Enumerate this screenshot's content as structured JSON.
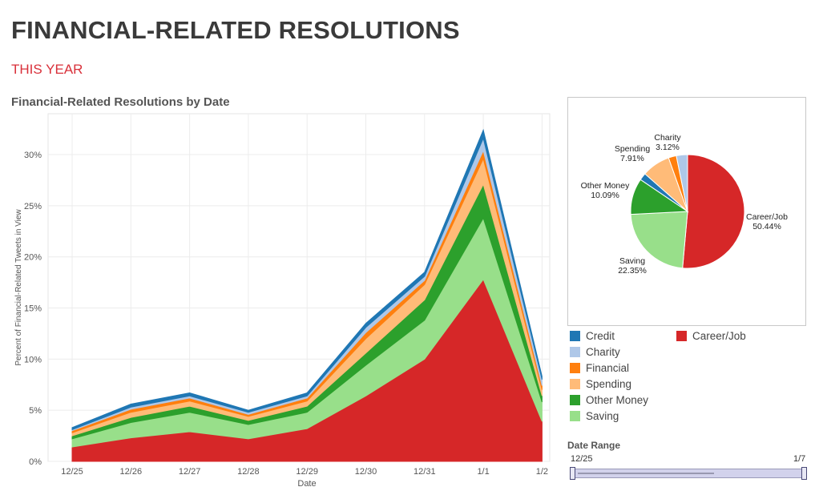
{
  "page": {
    "title": "FINANCIAL-RELATED RESOLUTIONS",
    "subtitle": "THIS YEAR",
    "chart_title": "Financial-Related Resolutions by Date"
  },
  "chart_data": [
    {
      "type": "area",
      "stacked": true,
      "title": "Financial-Related Resolutions by Date",
      "xlabel": "Date",
      "ylabel": "Percent of Financial-Related Tweets in View",
      "categories": [
        "12/25",
        "12/26",
        "12/27",
        "12/28",
        "12/29",
        "12/30",
        "12/31",
        "1/1",
        "1/2"
      ],
      "yticks": [
        "0%",
        "5%",
        "10%",
        "15%",
        "20%",
        "25%",
        "30%"
      ],
      "ylim": [
        0,
        34
      ],
      "grid": true,
      "series": [
        {
          "name": "Career/Job",
          "color": "#d62728",
          "values": [
            1.4,
            2.3,
            2.9,
            2.2,
            3.2,
            6.4,
            10.0,
            17.8,
            3.9
          ]
        },
        {
          "name": "Saving",
          "color": "#98df8a",
          "values": [
            0.8,
            1.5,
            1.9,
            1.4,
            1.6,
            3.0,
            3.8,
            6.0,
            1.9
          ]
        },
        {
          "name": "Other Money",
          "color": "#2ca02c",
          "values": [
            0.3,
            0.5,
            0.6,
            0.4,
            0.6,
            1.2,
            2.0,
            3.3,
            0.6
          ]
        },
        {
          "name": "Spending",
          "color": "#ffbb78",
          "values": [
            0.3,
            0.5,
            0.5,
            0.4,
            0.5,
            1.4,
            1.5,
            2.5,
            0.6
          ]
        },
        {
          "name": "Financial",
          "color": "#ff7f0e",
          "values": [
            0.2,
            0.3,
            0.3,
            0.2,
            0.3,
            0.6,
            0.4,
            0.8,
            0.4
          ]
        },
        {
          "name": "Charity",
          "color": "#aec7e8",
          "values": [
            0.1,
            0.2,
            0.2,
            0.2,
            0.2,
            0.5,
            0.4,
            1.2,
            0.6
          ]
        },
        {
          "name": "Credit",
          "color": "#1f77b4",
          "values": [
            0.2,
            0.3,
            0.3,
            0.2,
            0.3,
            0.4,
            0.4,
            0.8,
            0.3
          ]
        }
      ]
    },
    {
      "type": "pie",
      "slices": [
        {
          "name": "Career/Job",
          "value": 50.44,
          "label": "50.44%",
          "color": "#d62728"
        },
        {
          "name": "Saving",
          "value": 22.35,
          "label": "22.35%",
          "color": "#98df8a"
        },
        {
          "name": "Other Money",
          "value": 10.09,
          "label": "10.09%",
          "color": "#2ca02c"
        },
        {
          "name": "Credit",
          "value": 2.0,
          "label": "",
          "color": "#1f77b4"
        },
        {
          "name": "Spending",
          "value": 7.91,
          "label": "7.91%",
          "color": "#ffbb78"
        },
        {
          "name": "Financial",
          "value": 2.2,
          "label": "",
          "color": "#ff7f0e"
        },
        {
          "name": "Charity",
          "value": 3.12,
          "label": "3.12%",
          "color": "#aec7e8"
        }
      ]
    }
  ],
  "legend": {
    "items": [
      {
        "name": "Credit",
        "color": "#1f77b4"
      },
      {
        "name": "Charity",
        "color": "#aec7e8"
      },
      {
        "name": "Financial",
        "color": "#ff7f0e"
      },
      {
        "name": "Spending",
        "color": "#ffbb78"
      },
      {
        "name": "Other Money",
        "color": "#2ca02c"
      },
      {
        "name": "Saving",
        "color": "#98df8a"
      },
      {
        "name": "Career/Job",
        "color": "#d62728"
      }
    ]
  },
  "date_range": {
    "title": "Date Range",
    "start": "12/25",
    "end": "1/7"
  }
}
